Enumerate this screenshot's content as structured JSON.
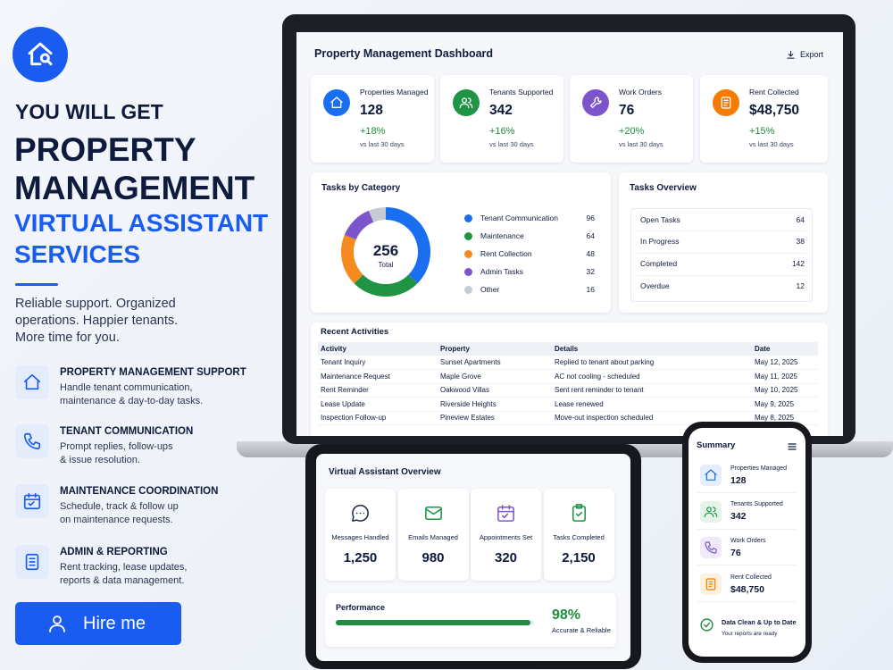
{
  "left": {
    "eyebrow": "YOU WILL GET",
    "headline_lines": [
      "PROPERTY",
      "MANAGEMENT"
    ],
    "highlight_lines": [
      "VIRTUAL ASSISTANT",
      "SERVICES"
    ],
    "tagline_lines": [
      "Reliable support. Organized",
      "operations. Happier tenants.",
      "More time for you."
    ],
    "services": [
      {
        "title": "PROPERTY MANAGEMENT SUPPORT",
        "lines": [
          "Handle tenant communication,",
          "maintenance & day-to-day tasks."
        ]
      },
      {
        "title": "TENANT COMMUNICATION",
        "lines": [
          "Prompt replies, follow-ups",
          "& issue resolution."
        ]
      },
      {
        "title": "MAINTENANCE COORDINATION",
        "lines": [
          "Schedule, track & follow up",
          "on maintenance requests."
        ]
      },
      {
        "title": "ADMIN & REPORTING",
        "lines": [
          "Rent tracking, lease updates,",
          "reports & data management."
        ]
      }
    ],
    "cta": "Hire me"
  },
  "dashboard": {
    "title": "Property Management Dashboard",
    "export": "Export",
    "kpis": [
      {
        "label": "Properties Managed",
        "value": 128,
        "change": "+18%",
        "period": "vs last 30 days"
      },
      {
        "label": "Tenants Supported",
        "value": 342,
        "change": "+16%",
        "period": "vs last 30 days"
      },
      {
        "label": "Work Orders",
        "value": 76,
        "change": "+20%",
        "period": "vs last 30 days"
      },
      {
        "label": "Rent Collected",
        "value": "$48,750",
        "change": "+15%",
        "period": "vs last 30 days"
      }
    ],
    "tasks_by_category": {
      "title": "Tasks by Category",
      "total": 256,
      "total_label": "Total",
      "items": [
        {
          "name": "Tenant Communication",
          "value": 96,
          "color": "#1a6ef0"
        },
        {
          "name": "Maintenance",
          "value": 64,
          "color": "#1e9444"
        },
        {
          "name": "Rent Collection",
          "value": 48,
          "color": "#f58a1f"
        },
        {
          "name": "Admin Tasks",
          "value": 32,
          "color": "#7c55cc"
        },
        {
          "name": "Other",
          "value": 16,
          "color": "#c7cbd4"
        }
      ]
    },
    "tasks_overview": {
      "title": "Tasks Overview",
      "rows": [
        {
          "label": "Open Tasks",
          "value": 64
        },
        {
          "label": "In Progress",
          "value": 38
        },
        {
          "label": "Completed",
          "value": 142
        },
        {
          "label": "Overdue",
          "value": 12
        }
      ]
    },
    "recent_activities": {
      "title": "Recent Activities",
      "columns": [
        "Activity",
        "Property",
        "Details",
        "Date"
      ],
      "rows": [
        [
          "Tenant Inquiry",
          "Sunset Apartments",
          "Replied to tenant about parking",
          "May 12, 2025"
        ],
        [
          "Maintenance Request",
          "Maple Grove",
          "AC not cooling - scheduled",
          "May 11, 2025"
        ],
        [
          "Rent Reminder",
          "Oakwood Villas",
          "Sent rent reminder to tenant",
          "May 10, 2025"
        ],
        [
          "Lease Update",
          "Riverside Heights",
          "Lease renewed",
          "May 9, 2025"
        ],
        [
          "Inspection Follow-up",
          "Pineview Estates",
          "Move-out inspection scheduled",
          "May 8, 2025"
        ]
      ]
    }
  },
  "va_overview": {
    "title": "Virtual Assistant Overview",
    "stats": [
      {
        "label": "Messages Handled",
        "value": "1,250"
      },
      {
        "label": "Emails Managed",
        "value": 980
      },
      {
        "label": "Appointments Set",
        "value": 320
      },
      {
        "label": "Tasks Completed",
        "value": "2,150"
      }
    ],
    "performance": {
      "title": "Performance",
      "value": 98,
      "value_label": "98%",
      "caption": "Accurate & Reliable"
    }
  },
  "summary": {
    "title": "Summary",
    "items": [
      {
        "label": "Properties Managed",
        "value": 128
      },
      {
        "label": "Tenants Supported",
        "value": 342
      },
      {
        "label": "Work Orders",
        "value": 76
      },
      {
        "label": "Rent Collected",
        "value": "$48,750"
      }
    ],
    "status": {
      "title": "Data Clean & Up to Date",
      "subtitle": "Your reports are ready"
    }
  }
}
